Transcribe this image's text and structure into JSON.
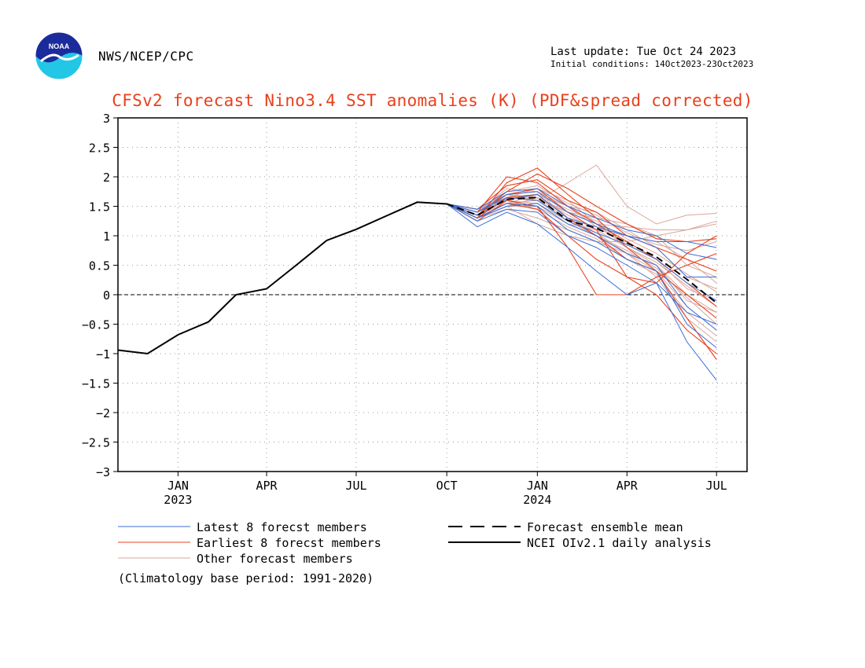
{
  "header": {
    "org": "NWS/NCEP/CPC",
    "last_update": "Last update: Tue Oct 24 2023",
    "initial_conditions": "Initial conditions: 14Oct2023-23Oct2023",
    "logo_text": "NOAA"
  },
  "colors": {
    "title": "#e8401c",
    "latest": "#3a6fd8",
    "earliest": "#e8401c",
    "other": "#d9a79a",
    "mean": "#000000",
    "analysis": "#000000"
  },
  "chart_data": {
    "type": "line",
    "title": "CFSv2 forecast Nino3.4 SST anomalies (K) (PDF&spread corrected)",
    "ylim": [
      -3,
      3
    ],
    "yticks": [
      "3",
      "2.5",
      "2",
      "1.5",
      "1",
      "0.5",
      "0",
      "-0.5",
      "-1",
      "-1.5",
      "-2",
      "-2.5",
      "-3"
    ],
    "xlim": [
      "2022-11-01",
      "2024-08-01"
    ],
    "xticks": [
      {
        "label": "JAN",
        "year": "2023",
        "date": "2023-01-01"
      },
      {
        "label": "APR",
        "year": "",
        "date": "2023-04-01"
      },
      {
        "label": "JUL",
        "year": "",
        "date": "2023-07-01"
      },
      {
        "label": "OCT",
        "year": "",
        "date": "2023-10-01"
      },
      {
        "label": "JAN",
        "year": "2024",
        "date": "2024-01-01"
      },
      {
        "label": "APR",
        "year": "",
        "date": "2024-04-01"
      },
      {
        "label": "JUL",
        "year": "",
        "date": "2024-07-01"
      }
    ],
    "grid": true,
    "zero_line": true,
    "legend": [
      {
        "label": "Latest 8 forecst members",
        "key": "latest"
      },
      {
        "label": "Earliest 8 forecst members",
        "key": "earliest"
      },
      {
        "label": "Other forecast members",
        "key": "other"
      },
      {
        "label": "Forecast ensemble mean",
        "key": "mean"
      },
      {
        "label": "NCEI OIv2.1 daily analysis",
        "key": "analysis"
      }
    ],
    "footnote": "(Climatology base period: 1991-2020)",
    "forecast_months": [
      "2023-10-01",
      "2023-11-01",
      "2023-12-01",
      "2024-01-01",
      "2024-02-01",
      "2024-03-01",
      "2024-04-01",
      "2024-05-01",
      "2024-06-01",
      "2024-07-01"
    ],
    "series": [
      {
        "name": "NCEI OIv2.1 daily analysis",
        "style": "analysis",
        "x": [
          "2022-11-01",
          "2022-12-01",
          "2023-01-01",
          "2023-02-01",
          "2023-03-01",
          "2023-04-01",
          "2023-05-01",
          "2023-06-01",
          "2023-07-01",
          "2023-08-01",
          "2023-09-01",
          "2023-10-01"
        ],
        "y": [
          -0.94,
          -1.0,
          -0.68,
          -0.46,
          0.0,
          0.1,
          0.5,
          0.92,
          1.11,
          1.34,
          1.57,
          1.54
        ]
      },
      {
        "name": "Forecast ensemble mean",
        "style": "mean",
        "y": [
          1.54,
          1.35,
          1.62,
          1.65,
          1.26,
          1.13,
          0.88,
          0.64,
          0.26,
          -0.14
        ]
      },
      {
        "name": "Latest 8 forecst members",
        "style": "latest",
        "members": [
          [
            1.54,
            1.15,
            1.4,
            1.2,
            0.8,
            0.4,
            0.0,
            0.2,
            -0.8,
            -1.45
          ],
          [
            1.54,
            1.3,
            1.5,
            1.55,
            1.2,
            1.0,
            0.7,
            0.5,
            -0.2,
            -0.6
          ],
          [
            1.54,
            1.35,
            1.62,
            1.7,
            1.3,
            1.15,
            1.0,
            0.9,
            0.9,
            0.8
          ],
          [
            1.54,
            1.4,
            1.7,
            1.75,
            1.4,
            1.2,
            1.0,
            0.8,
            0.3,
            0.3
          ],
          [
            1.54,
            1.3,
            1.55,
            1.5,
            1.1,
            0.9,
            0.6,
            0.4,
            -0.5,
            -0.9
          ],
          [
            1.54,
            1.45,
            1.75,
            1.8,
            1.5,
            1.3,
            1.1,
            1.0,
            0.7,
            0.6
          ],
          [
            1.54,
            1.25,
            1.45,
            1.4,
            1.0,
            0.8,
            0.5,
            0.2,
            -0.3,
            -0.5
          ],
          [
            1.54,
            1.4,
            1.65,
            1.6,
            1.25,
            1.05,
            0.85,
            0.6,
            0.2,
            -0.1
          ]
        ]
      },
      {
        "name": "Earliest 8 forecst members",
        "style": "earliest",
        "members": [
          [
            1.54,
            1.3,
            1.9,
            2.15,
            1.7,
            1.3,
            0.8,
            0.4,
            -0.4,
            -1.1
          ],
          [
            1.54,
            1.35,
            1.7,
            1.8,
            1.4,
            1.1,
            0.3,
            0.2,
            0.7,
            1.0
          ],
          [
            1.54,
            1.25,
            1.6,
            1.5,
            0.8,
            0.0,
            0.0,
            0.3,
            0.5,
            0.7
          ],
          [
            1.54,
            1.4,
            2.0,
            1.9,
            1.5,
            1.2,
            0.9,
            0.6,
            0.2,
            -0.2
          ],
          [
            1.54,
            1.3,
            1.55,
            1.45,
            1.0,
            0.6,
            0.3,
            0.0,
            -0.6,
            -1.0
          ],
          [
            1.54,
            1.45,
            1.85,
            1.95,
            1.6,
            1.4,
            1.0,
            0.8,
            0.6,
            0.4
          ],
          [
            1.54,
            1.3,
            1.65,
            1.7,
            1.3,
            1.0,
            0.6,
            0.4,
            0.0,
            -0.4
          ],
          [
            1.54,
            1.35,
            1.75,
            2.05,
            1.8,
            1.5,
            1.2,
            0.95,
            0.9,
            0.95
          ]
        ]
      },
      {
        "name": "Other forecast members",
        "style": "other",
        "members": [
          [
            1.54,
            1.4,
            1.7,
            1.6,
            1.9,
            2.2,
            1.5,
            1.2,
            1.35,
            1.38
          ],
          [
            1.54,
            1.3,
            1.5,
            1.2,
            1.0,
            0.9,
            0.9,
            1.0,
            1.1,
            1.2
          ],
          [
            1.54,
            1.35,
            1.6,
            1.7,
            1.5,
            1.4,
            1.1,
            0.8,
            0.3,
            0.1
          ],
          [
            1.54,
            1.4,
            1.8,
            1.75,
            1.3,
            1.0,
            0.7,
            0.5,
            -0.1,
            -0.3
          ],
          [
            1.54,
            1.3,
            1.45,
            1.3,
            1.1,
            0.9,
            0.7,
            0.4,
            -0.2,
            -0.6
          ],
          [
            1.54,
            1.35,
            1.55,
            1.6,
            1.4,
            1.3,
            1.2,
            1.0,
            0.5,
            0.3
          ],
          [
            1.54,
            1.45,
            1.65,
            1.8,
            1.6,
            1.2,
            0.8,
            0.5,
            0.0,
            -0.3
          ],
          [
            1.54,
            1.3,
            1.5,
            1.5,
            1.2,
            1.1,
            1.0,
            0.9,
            0.6,
            0.2
          ],
          [
            1.54,
            1.4,
            1.7,
            1.65,
            1.35,
            1.1,
            0.8,
            0.55,
            0.15,
            -0.2
          ],
          [
            1.54,
            1.35,
            1.6,
            1.55,
            1.25,
            1.0,
            0.75,
            0.45,
            -0.05,
            -0.5
          ],
          [
            1.54,
            1.3,
            1.55,
            1.7,
            1.45,
            1.25,
            0.95,
            0.7,
            0.35,
            0.05
          ],
          [
            1.54,
            1.4,
            1.75,
            1.85,
            1.55,
            1.35,
            1.05,
            0.85,
            0.75,
            0.9
          ],
          [
            1.54,
            1.35,
            1.65,
            1.6,
            1.3,
            1.05,
            0.7,
            0.3,
            -0.4,
            -0.8
          ],
          [
            1.54,
            1.4,
            1.6,
            1.45,
            1.15,
            0.95,
            0.6,
            0.35,
            -0.3,
            -0.7
          ],
          [
            1.54,
            1.45,
            1.7,
            1.75,
            1.5,
            1.15,
            0.85,
            0.6,
            0.1,
            -0.1
          ],
          [
            1.54,
            1.3,
            1.5,
            1.65,
            1.4,
            1.2,
            1.15,
            1.1,
            1.1,
            1.25
          ]
        ]
      }
    ]
  }
}
